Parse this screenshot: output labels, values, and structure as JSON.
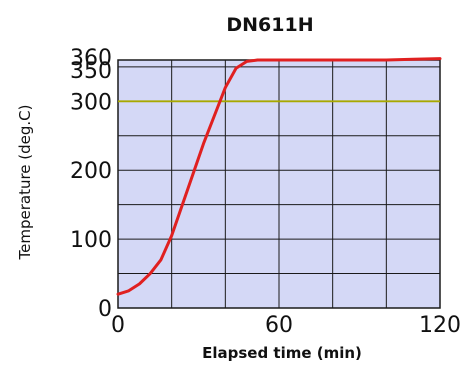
{
  "chart_data": {
    "type": "line",
    "title": "DN611H",
    "xlabel": "Elapsed time (min)",
    "ylabel": "Temperature (deg.C)",
    "xlim": [
      0,
      120
    ],
    "ylim": [
      0,
      360
    ],
    "x_ticks": [
      0,
      60,
      120
    ],
    "x_tick_labels": [
      "0",
      "60",
      "120"
    ],
    "y_ticks": [
      0,
      100,
      200,
      300,
      350,
      360
    ],
    "y_tick_labels": [
      "0",
      "100",
      "200",
      "300",
      "350",
      "360"
    ],
    "grid": true,
    "colors": {
      "plot_bg": "#d4d8f6",
      "grid": "#1a1a1a",
      "line": "#e02020",
      "highlight_300": "#a8a800"
    },
    "series": [
      {
        "x": [
          0,
          4,
          8,
          12,
          16,
          20,
          24,
          28,
          32,
          36,
          40,
          44,
          48,
          52,
          56,
          60,
          70,
          80,
          90,
          100,
          110,
          120
        ],
        "y": [
          20,
          25,
          35,
          50,
          70,
          105,
          150,
          195,
          240,
          280,
          320,
          348,
          358,
          360,
          360,
          360,
          360,
          360,
          360,
          360,
          361,
          362
        ]
      }
    ]
  }
}
